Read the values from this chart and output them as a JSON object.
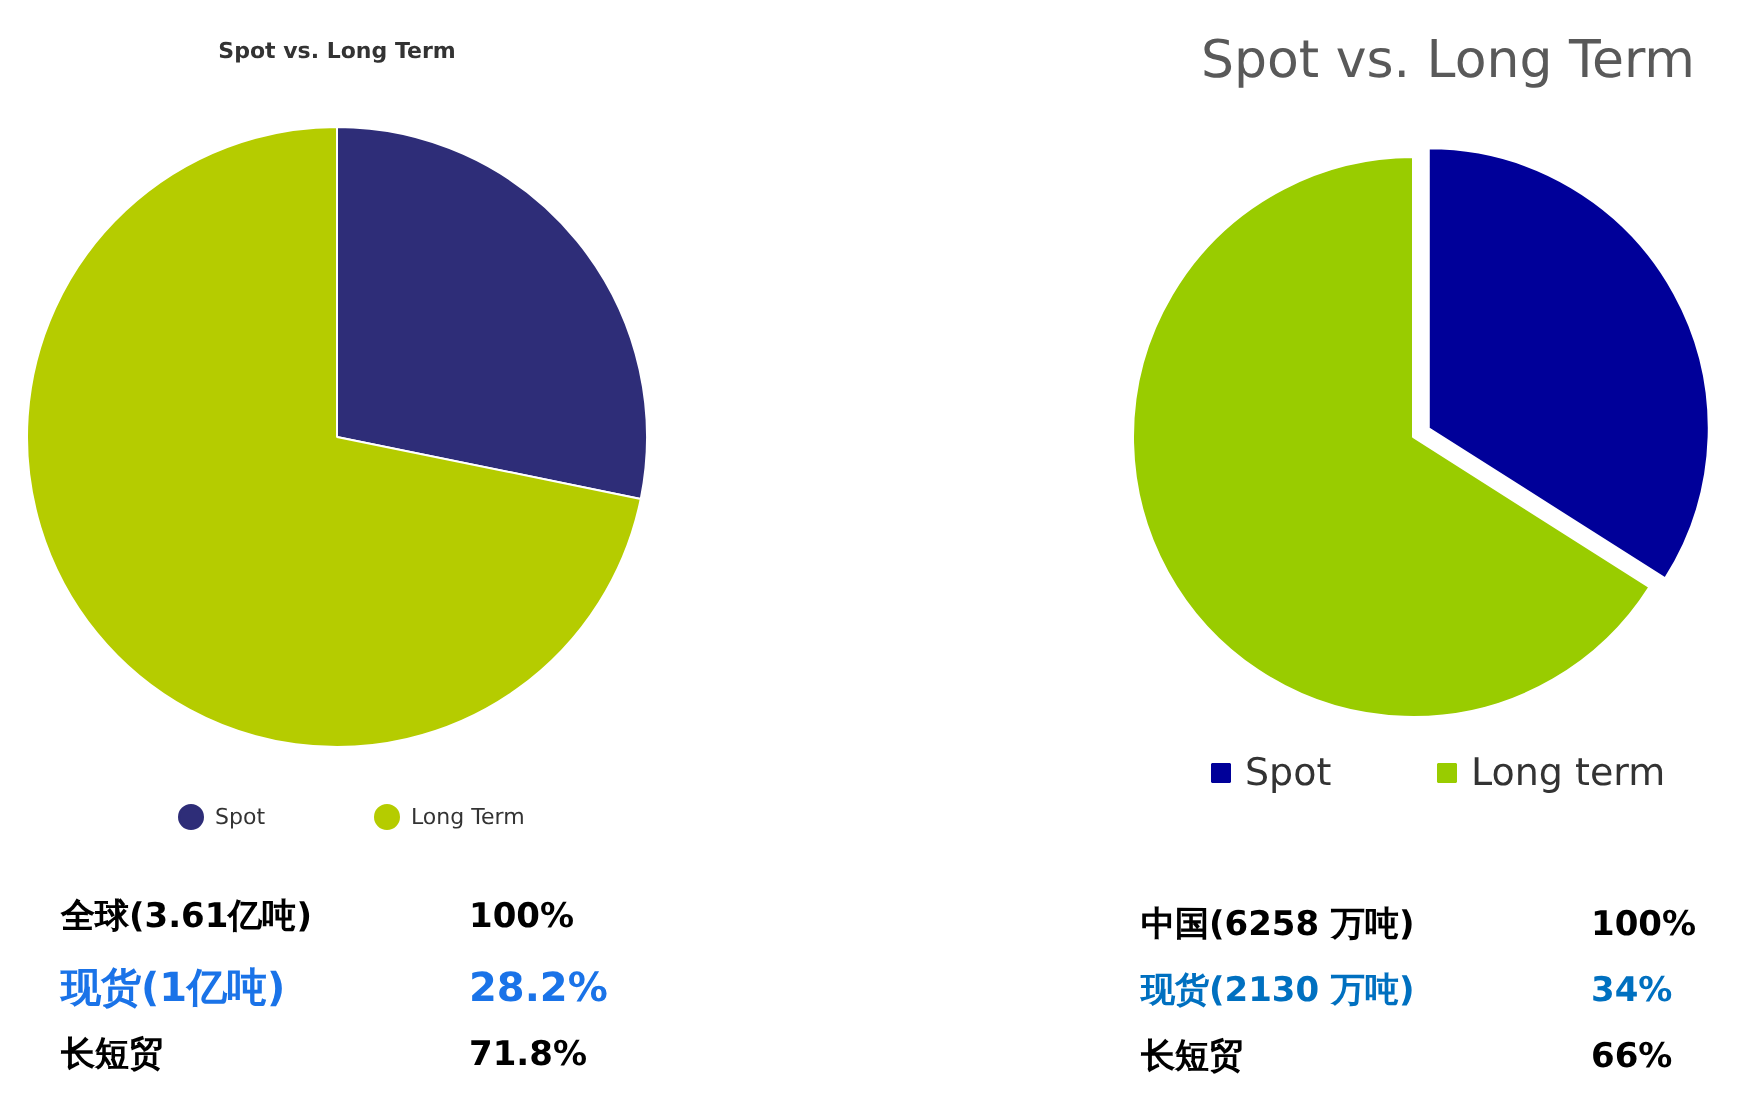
{
  "chart_data": [
    {
      "type": "pie",
      "title": "Spot vs. Long Term",
      "categories": [
        "Spot",
        "Long Term"
      ],
      "values": [
        28.2,
        71.8
      ],
      "colors": [
        "#2e2d78",
        "#b5cc00"
      ],
      "legend": "bottom",
      "annotations": [
        "全球(3.61亿吨)",
        "100%",
        "现货(1亿吨)",
        "28.2%",
        "长短贸",
        "71.8%"
      ]
    },
    {
      "type": "pie",
      "title": "Spot vs. Long Term",
      "categories": [
        "Spot",
        "Long term"
      ],
      "values": [
        34,
        66
      ],
      "colors": [
        "#000099",
        "#99cc00"
      ],
      "legend": "bottom",
      "annotations": [
        "中国(6258 万吨)",
        "100%",
        "现货(2130 万吨)",
        "34%",
        "长短贸",
        "66%"
      ]
    }
  ]
}
